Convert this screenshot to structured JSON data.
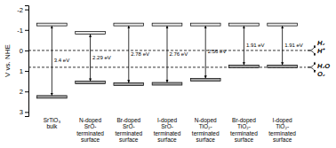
{
  "chart_data": {
    "type": "band_edge",
    "categories": [
      "SrTiO₃\nbulk",
      "N-doped\nSrO-\nterminated\nsurface",
      "Br-doped\nSrO-\nterminated\nsurface",
      "I-doped\nSrO-\nterminated\nsurface",
      "N-doped\nTiO₂-\nterminated\nsurface",
      "Br-doped\nTiO₂-\nterminated\nsurface",
      "I-doped\nTiO₂-\nterminated\nsurface"
    ],
    "series": [
      {
        "values": [
          -1.2,
          -0.79,
          -1.2,
          -1.2,
          -1.2,
          -1.2,
          -1.2
        ],
        "color": "#e8e8e8"
      },
      {
        "values": [
          2.2,
          1.5,
          1.58,
          1.56,
          1.36,
          0.71,
          0.71
        ],
        "color": "#a0a0a0"
      }
    ],
    "gaps": {
      "values": [
        3.4,
        2.29,
        2.78,
        2.76,
        2.56,
        1.91,
        1.91
      ],
      "value_labels": [
        "3.4 eV",
        "2.29 eV",
        "2.78 eV",
        "2.76 eV",
        "2.56 eV",
        "1.91 eV",
        "1.91 eV"
      ]
    },
    "reference_lines": [
      {
        "value": 0.0,
        "labels": [
          "H₂",
          "H⁺"
        ]
      },
      {
        "value": 0.82,
        "labels": [
          "H₂O",
          "O₂"
        ]
      }
    ],
    "ylabel": "V vs. NHE",
    "ylim": [
      3.2,
      -2.2
    ],
    "yticks": [
      -2,
      -1,
      0,
      1,
      2,
      3
    ]
  }
}
